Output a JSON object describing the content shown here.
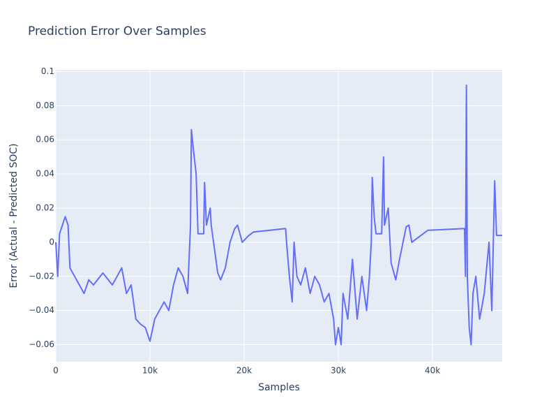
{
  "chart_data": {
    "type": "line",
    "title": "Prediction Error Over Samples",
    "x_label": "Samples",
    "y_label": "Error (Actual - Predicted SOC)",
    "series": [
      {
        "color": "#636efa",
        "x": [
          0,
          200,
          400,
          700,
          1000,
          1300,
          1500,
          2000,
          2500,
          3000,
          3500,
          4000,
          5000,
          6000,
          6500,
          7000,
          7500,
          8000,
          8500,
          9000,
          9500,
          10000,
          10500,
          11000,
          11500,
          12000,
          12500,
          13000,
          13500,
          14000,
          14300,
          14400,
          14600,
          14900,
          15100,
          15700,
          15800,
          16000,
          16400,
          16500,
          17200,
          17500,
          18000,
          18500,
          19000,
          19300,
          19800,
          20500,
          21000,
          24400,
          24500,
          24800,
          25100,
          25300,
          25600,
          26000,
          26500,
          27000,
          27500,
          28000,
          28500,
          29000,
          29500,
          29700,
          30000,
          30300,
          30500,
          31000,
          31500,
          32000,
          32500,
          33000,
          33300,
          33500,
          33600,
          33800,
          34000,
          34600,
          34800,
          34900,
          35300,
          35600,
          36100,
          36500,
          37200,
          37500,
          37800,
          39500,
          43400,
          43500,
          43600,
          43700,
          43900,
          44100,
          44300,
          44600,
          45000,
          45500,
          46000,
          46300,
          46600,
          46800,
          47400
        ],
        "values": [
          0,
          -0.02,
          0.005,
          0.01,
          0.015,
          0.01,
          -0.015,
          -0.02,
          -0.025,
          -0.03,
          -0.022,
          -0.025,
          -0.018,
          -0.025,
          -0.02,
          -0.015,
          -0.03,
          -0.025,
          -0.045,
          -0.048,
          -0.05,
          -0.058,
          -0.045,
          -0.04,
          -0.035,
          -0.04,
          -0.025,
          -0.015,
          -0.02,
          -0.03,
          0.01,
          0.066,
          0.055,
          0.04,
          0.005,
          0.005,
          0.035,
          0.01,
          0.02,
          0.01,
          -0.018,
          -0.022,
          -0.015,
          0,
          0.008,
          0.01,
          0,
          0.004,
          0.006,
          0.008,
          0,
          -0.02,
          -0.035,
          0,
          -0.02,
          -0.025,
          -0.015,
          -0.03,
          -0.02,
          -0.025,
          -0.035,
          -0.03,
          -0.045,
          -0.06,
          -0.05,
          -0.06,
          -0.03,
          -0.045,
          -0.01,
          -0.045,
          -0.02,
          -0.04,
          -0.02,
          0,
          0.038,
          0.015,
          0.005,
          0.005,
          0.05,
          0.01,
          0.02,
          -0.012,
          -0.022,
          -0.01,
          0.009,
          0.01,
          0,
          0.007,
          0.008,
          -0.02,
          0.092,
          -0.02,
          -0.05,
          -0.06,
          -0.03,
          -0.02,
          -0.045,
          -0.03,
          0,
          -0.04,
          0.036,
          0.004,
          0.004
        ]
      }
    ],
    "xlim": [
      0,
      47400
    ],
    "ylim": [
      -0.07,
      0.101
    ],
    "xticks": [
      0,
      {
        "value": 10000,
        "label": "10k"
      },
      {
        "value": 20000,
        "label": "20k"
      },
      {
        "value": 30000,
        "label": "30k"
      },
      {
        "value": 40000,
        "label": "40k"
      }
    ],
    "yticks": [
      {
        "value": -0.06,
        "label": "−0.06"
      },
      {
        "value": -0.04,
        "label": "−0.04"
      },
      {
        "value": -0.02,
        "label": "−0.02"
      },
      0,
      0.02,
      0.04,
      0.06,
      0.08,
      0.1
    ],
    "grid": true
  }
}
